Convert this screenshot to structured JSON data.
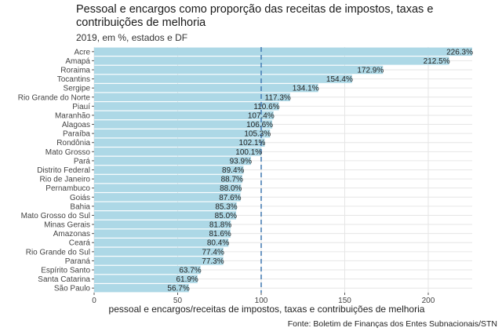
{
  "header": {
    "title": "Pessoal e encargos como proporção das receitas de impostos, taxas e contribuições de melhoria",
    "subtitle": "2019, em %, estados e DF"
  },
  "caption": "Fonte: Boletim de Finanças dos Entes Subnacionais/STN",
  "colors": {
    "bar": "#add8e6",
    "reference_line": "#4a7fb5",
    "grid": "#e6e6e6"
  },
  "chart_data": {
    "type": "bar",
    "orientation": "horizontal",
    "xlabel": "pessoal e encargos/receitas de impostos, taxas e contribuições de melhoria",
    "ylabel": "",
    "xlim": [
      0,
      226.3
    ],
    "xticks": [
      0,
      50,
      100,
      150,
      200
    ],
    "reference_line": {
      "x": 100,
      "style": "dashed"
    },
    "categories": [
      "Acre",
      "Amapá",
      "Roraima",
      "Tocantins",
      "Sergipe",
      "Rio Grande do Norte",
      "Piauí",
      "Maranhão",
      "Alagoas",
      "Paraíba",
      "Rondônia",
      "Mato Grosso",
      "Pará",
      "Distrito Federal",
      "Rio de Janeiro",
      "Pernambuco",
      "Goiás",
      "Bahia",
      "Mato Grosso do Sul",
      "Minas Gerais",
      "Amazonas",
      "Ceará",
      "Rio Grande do Sul",
      "Paraná",
      "Espírito Santo",
      "Santa Catarina",
      "São Paulo"
    ],
    "values": [
      226.3,
      212.5,
      172.9,
      154.4,
      134.1,
      117.3,
      110.6,
      107.4,
      106.6,
      105.3,
      102.1,
      100.1,
      93.9,
      89.4,
      88.7,
      88.0,
      87.6,
      85.3,
      85.0,
      81.8,
      81.6,
      80.4,
      77.4,
      77.3,
      63.7,
      61.9,
      56.7
    ],
    "value_labels": [
      "226.3%",
      "212.5%",
      "172.9%",
      "154.4%",
      "134.1%",
      "117.3%",
      "110.6%",
      "107.4%",
      "106.6%",
      "105.3%",
      "102.1%",
      "100.1%",
      "93.9%",
      "89.4%",
      "88.7%",
      "88.0%",
      "87.6%",
      "85.3%",
      "85.0%",
      "81.8%",
      "81.6%",
      "80.4%",
      "77.4%",
      "77.3%",
      "63.7%",
      "61.9%",
      "56.7%"
    ],
    "grid": true
  }
}
